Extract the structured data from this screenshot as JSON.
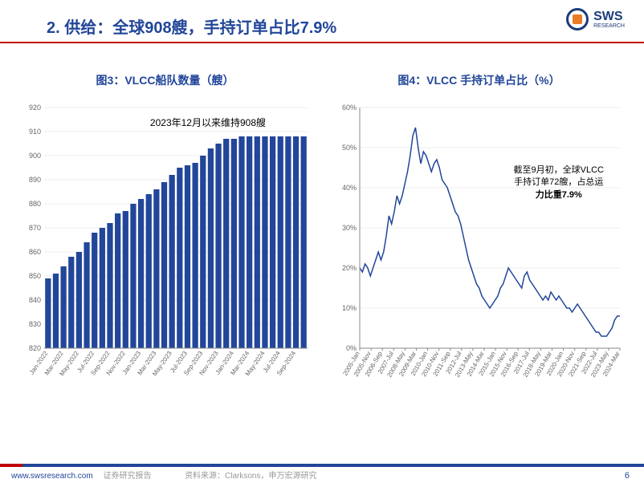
{
  "header": {
    "title": "2. 供给：全球908艘，手持订单占比7.9%",
    "logo_text": "SWS",
    "logo_sub": "RESEARCH",
    "title_color": "#224699",
    "line_color": "#c00000"
  },
  "chart3": {
    "type": "bar",
    "title": "图3：VLCC船队数量（艘）",
    "title_color": "#224699",
    "title_fontsize": 14,
    "annotation": "2023年12月以来维持908艘",
    "bar_color": "#224699",
    "grid_color": "#d9d9d9",
    "background_color": "#ffffff",
    "ylim": [
      820,
      920
    ],
    "ytick_step": 10,
    "yticks": [
      820,
      830,
      840,
      850,
      860,
      870,
      880,
      890,
      900,
      910,
      920
    ],
    "categories": [
      "Jan-2022",
      "Mar-2022",
      "May-2022",
      "Jul-2022",
      "Sep-2022",
      "Nov-2022",
      "Jan-2023",
      "Mar-2023",
      "May-2023",
      "Jul-2023",
      "Sep-2023",
      "Nov-2023",
      "Jan-2024",
      "Mar-2024",
      "May-2024",
      "Jul-2024",
      "Sep-2024"
    ],
    "values": [
      849,
      851,
      854,
      858,
      860,
      864,
      868,
      870,
      872,
      876,
      877,
      880,
      882,
      884,
      886,
      889,
      892,
      895,
      896,
      897,
      900,
      903,
      905,
      907,
      907,
      908,
      908,
      908,
      908,
      908,
      908,
      908,
      908,
      908
    ],
    "bar_count": 34
  },
  "chart4": {
    "type": "line",
    "title": "图4：VLCC 手持订单占比（%）",
    "title_color": "#224699",
    "title_fontsize": 14,
    "annotation_l1": "截至9月初，全球VLCC",
    "annotation_l2": "手持订单72艘，占总运",
    "annotation_l3": "力比重7.9%",
    "line_color": "#224699",
    "line_width": 1.5,
    "grid_color": "#d9d9d9",
    "background_color": "#ffffff",
    "ylim": [
      0,
      60
    ],
    "ytick_step": 10,
    "yticks": [
      0,
      10,
      20,
      30,
      40,
      50,
      60
    ],
    "x_labels": [
      "2005-Jan",
      "2005-Nov",
      "2006-Sep",
      "2007-Jul",
      "2008-May",
      "2009-Mar",
      "2010-Jan",
      "2010-Nov",
      "2011-Sep",
      "2012-Jul",
      "2013-May",
      "2014-Mar",
      "2015-Jan",
      "2015-Nov",
      "2016-Sep",
      "2017-Jul",
      "2018-May",
      "2019-Mar",
      "2020-Jan",
      "2020-Nov",
      "2021-Sep",
      "2022-Jul",
      "2023-May",
      "2024-Mar"
    ],
    "values": [
      20,
      19,
      21,
      20,
      18,
      20,
      22,
      24,
      22,
      24,
      28,
      33,
      31,
      34,
      38,
      36,
      38,
      41,
      44,
      48,
      53,
      55,
      50,
      46,
      49,
      48,
      46,
      44,
      46,
      47,
      45,
      42,
      41,
      40,
      38,
      36,
      34,
      33,
      31,
      28,
      25,
      22,
      20,
      18,
      16,
      15,
      13,
      12,
      11,
      10,
      11,
      12,
      13,
      15,
      16,
      18,
      20,
      19,
      18,
      17,
      16,
      15,
      18,
      19,
      17,
      16,
      15,
      14,
      13,
      12,
      13,
      12,
      14,
      13,
      12,
      13,
      12,
      11,
      10,
      10,
      9,
      10,
      11,
      10,
      9,
      8,
      7,
      6,
      5,
      4,
      4,
      3,
      3,
      3,
      4,
      5,
      7,
      8,
      8
    ]
  },
  "footer": {
    "url": "www.swsresearch.com",
    "report": "证券研究报告",
    "source": "资料来源：Clarksons，申万宏源研究",
    "page": "6",
    "band_color": "#224699",
    "band_red": "#c00000"
  }
}
